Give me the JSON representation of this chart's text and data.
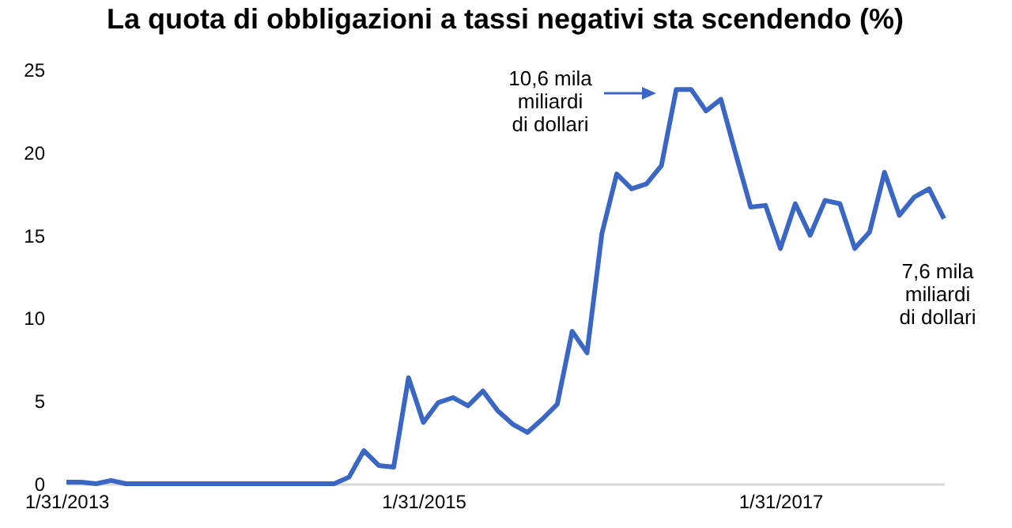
{
  "chart_data": {
    "type": "line",
    "title": "La quota di obbligazioni a tassi negativi sta scendendo (%)",
    "categories": [
      "1/31/2013",
      null,
      null,
      null,
      null,
      null,
      null,
      null,
      null,
      null,
      null,
      null,
      null,
      null,
      null,
      null,
      null,
      null,
      null,
      null,
      null,
      null,
      null,
      null,
      "1/31/2015",
      null,
      null,
      null,
      null,
      null,
      null,
      null,
      null,
      null,
      null,
      null,
      null,
      null,
      null,
      null,
      null,
      null,
      null,
      null,
      null,
      null,
      null,
      null,
      "1/31/2017",
      null,
      null,
      null,
      null,
      null,
      null,
      null,
      null,
      null,
      null,
      null
    ],
    "values": [
      0.1,
      0.1,
      0,
      0.2,
      0,
      0,
      0,
      0,
      0,
      0,
      0,
      0,
      0,
      0,
      0,
      0,
      0,
      0,
      0,
      0.4,
      2.0,
      1.1,
      1.0,
      6.4,
      3.7,
      4.9,
      5.2,
      4.7,
      5.6,
      4.4,
      3.6,
      3.1,
      3.9,
      4.8,
      9.2,
      7.9,
      15.1,
      18.7,
      17.8,
      18.1,
      19.2,
      23.8,
      23.8,
      22.5,
      23.2,
      19.9,
      16.7,
      16.8,
      14.2,
      16.9,
      15.0,
      17.1,
      16.9,
      14.2,
      15.2,
      18.8,
      16.2,
      17.3,
      17.8,
      16.0
    ],
    "color": "#3a66c4",
    "ylim": [
      0,
      25
    ],
    "yticks": [
      0,
      5,
      10,
      15,
      20,
      25
    ],
    "annotations": [
      "10,6 mila\nmiliardi\ndi dollari",
      "7,6 mila\nmiliardi\ndi dollari"
    ]
  }
}
